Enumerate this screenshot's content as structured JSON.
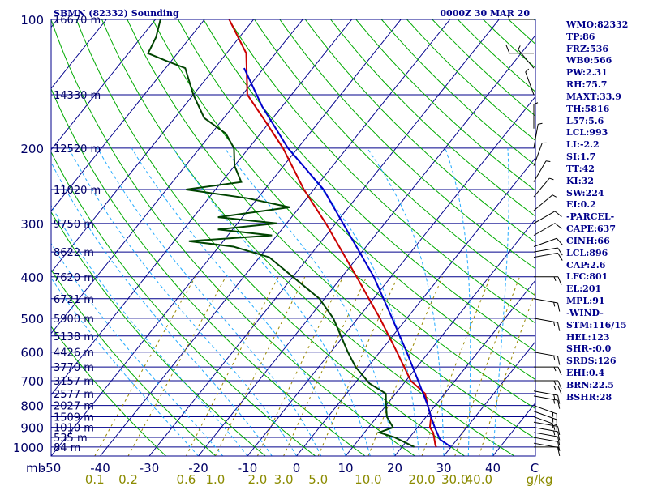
{
  "header": {
    "station": "SBMN (82332) Sounding",
    "valid_time": "0000Z 30 MAR 20"
  },
  "chart_data": {
    "type": "line",
    "title": "SBMN (82332) Sounding",
    "subtitle": "0000Z 30 MAR 20",
    "x_axis_unit_label": "mb",
    "mixing_ratio_unit_label": "g/kg",
    "pressure_levels": [
      100,
      200,
      300,
      400,
      500,
      600,
      700,
      800,
      900,
      1000
    ],
    "pressure_ticks": [
      "100",
      "200",
      "300",
      "400",
      "500",
      "600",
      "700",
      "800",
      "900",
      "1000"
    ],
    "temperature_ticks": [
      "-50",
      "-40",
      "-30",
      "-20",
      "-10",
      "0",
      "10",
      "20",
      "30",
      "40",
      "C"
    ],
    "temperature_values": [
      -50,
      -40,
      -30,
      -20,
      -10,
      0,
      10,
      20,
      30,
      40
    ],
    "mixing_ratio_ticks": [
      "0.1",
      "0.2",
      "0.6",
      "1.0",
      "2.0",
      "3.0",
      "5.0",
      "10.0",
      "20.0",
      "30.0",
      "40.0"
    ],
    "mixing_ratio_values": [
      0.1,
      0.2,
      0.6,
      1.0,
      2.0,
      3.0,
      5.0,
      10.0,
      20.0,
      30.0,
      40.0
    ],
    "height_labels": [
      {
        "p": 100,
        "label": "16670 m"
      },
      {
        "p": 150,
        "label": "14330 m"
      },
      {
        "p": 200,
        "label": "12520 m"
      },
      {
        "p": 250,
        "label": "11020 m"
      },
      {
        "p": 300,
        "label": "9750 m"
      },
      {
        "p": 350,
        "label": "8622 m"
      },
      {
        "p": 400,
        "label": "7620 m"
      },
      {
        "p": 450,
        "label": "6721 m"
      },
      {
        "p": 500,
        "label": "5900 m"
      },
      {
        "p": 550,
        "label": "5138 m"
      },
      {
        "p": 600,
        "label": "4426 m"
      },
      {
        "p": 650,
        "label": "3770 m"
      },
      {
        "p": 700,
        "label": "3157 m"
      },
      {
        "p": 750,
        "label": "2577 m"
      },
      {
        "p": 800,
        "label": "2027 m"
      },
      {
        "p": 850,
        "label": "1509 m"
      },
      {
        "p": 900,
        "label": "1010 m"
      },
      {
        "p": 950,
        "label": "535 m"
      },
      {
        "p": 1000,
        "label": "84 m"
      }
    ],
    "series": [
      {
        "name": "Temperature",
        "color": "#cc0000",
        "points": [
          {
            "p": 1000,
            "t": 27.0
          },
          {
            "p": 990,
            "t": 26.5
          },
          {
            "p": 950,
            "t": 25.0
          },
          {
            "p": 925,
            "t": 24.0
          },
          {
            "p": 900,
            "t": 22.5
          },
          {
            "p": 850,
            "t": 21.0
          },
          {
            "p": 800,
            "t": 18.5
          },
          {
            "p": 750,
            "t": 16.0
          },
          {
            "p": 700,
            "t": 11.0
          },
          {
            "p": 600,
            "t": 3.5
          },
          {
            "p": 500,
            "t": -5.5
          },
          {
            "p": 400,
            "t": -17.0
          },
          {
            "p": 300,
            "t": -32.0
          },
          {
            "p": 250,
            "t": -42.0
          },
          {
            "p": 200,
            "t": -53.0
          },
          {
            "p": 170,
            "t": -62.0
          },
          {
            "p": 150,
            "t": -69.0
          },
          {
            "p": 120,
            "t": -76.0
          },
          {
            "p": 100,
            "t": -85.0
          }
        ]
      },
      {
        "name": "Dewpoint",
        "color": "#004400",
        "points": [
          {
            "p": 1000,
            "t": 22.5
          },
          {
            "p": 950,
            "t": 17.0
          },
          {
            "p": 925,
            "t": 13.0
          },
          {
            "p": 900,
            "t": 15.0
          },
          {
            "p": 850,
            "t": 12.0
          },
          {
            "p": 800,
            "t": 10.0
          },
          {
            "p": 750,
            "t": 8.0
          },
          {
            "p": 710,
            "t": 3.0
          },
          {
            "p": 650,
            "t": -2.5
          },
          {
            "p": 600,
            "t": -6.5
          },
          {
            "p": 500,
            "t": -15.0
          },
          {
            "p": 450,
            "t": -21.0
          },
          {
            "p": 400,
            "t": -30.0
          },
          {
            "p": 360,
            "t": -38.0
          },
          {
            "p": 340,
            "t": -47.0
          },
          {
            "p": 330,
            "t": -57.0
          },
          {
            "p": 320,
            "t": -41.0
          },
          {
            "p": 310,
            "t": -53.0
          },
          {
            "p": 300,
            "t": -42.0
          },
          {
            "p": 290,
            "t": -55.0
          },
          {
            "p": 275,
            "t": -42.0
          },
          {
            "p": 262,
            "t": -52.0
          },
          {
            "p": 250,
            "t": -66.0
          },
          {
            "p": 240,
            "t": -56.0
          },
          {
            "p": 220,
            "t": -60.0
          },
          {
            "p": 200,
            "t": -63.0
          },
          {
            "p": 185,
            "t": -67.0
          },
          {
            "p": 170,
            "t": -74.0
          },
          {
            "p": 150,
            "t": -80.0
          },
          {
            "p": 130,
            "t": -86.0
          },
          {
            "p": 125,
            "t": -91.0
          },
          {
            "p": 120,
            "t": -96.0
          },
          {
            "p": 110,
            "t": -97.0
          },
          {
            "p": 100,
            "t": -99.0
          }
        ]
      },
      {
        "name": "Parcel",
        "color": "#0000cc",
        "points": [
          {
            "p": 1000,
            "t": 30.0
          },
          {
            "p": 960,
            "t": 26.5
          },
          {
            "p": 900,
            "t": 23.5
          },
          {
            "p": 850,
            "t": 21.0
          },
          {
            "p": 800,
            "t": 18.5
          },
          {
            "p": 700,
            "t": 12.5
          },
          {
            "p": 600,
            "t": 5.5
          },
          {
            "p": 500,
            "t": -3.0
          },
          {
            "p": 400,
            "t": -13.5
          },
          {
            "p": 300,
            "t": -28.5
          },
          {
            "p": 250,
            "t": -38.0
          },
          {
            "p": 200,
            "t": -52.0
          },
          {
            "p": 160,
            "t": -64.0
          },
          {
            "p": 130,
            "t": -74.0
          }
        ]
      }
    ],
    "winds": [
      {
        "p": 1000,
        "dir": 90,
        "spd": 5
      },
      {
        "p": 980,
        "dir": 100,
        "spd": 10
      },
      {
        "p": 950,
        "dir": 100,
        "spd": 10
      },
      {
        "p": 925,
        "dir": 100,
        "spd": 10
      },
      {
        "p": 900,
        "dir": 100,
        "spd": 15
      },
      {
        "p": 875,
        "dir": 100,
        "spd": 15
      },
      {
        "p": 850,
        "dir": 110,
        "spd": 15
      },
      {
        "p": 825,
        "dir": 110,
        "spd": 15
      },
      {
        "p": 800,
        "dir": 110,
        "spd": 15
      },
      {
        "p": 760,
        "dir": 100,
        "spd": 15
      },
      {
        "p": 740,
        "dir": 100,
        "spd": 15
      },
      {
        "p": 720,
        "dir": 90,
        "spd": 15
      },
      {
        "p": 700,
        "dir": 90,
        "spd": 15
      },
      {
        "p": 650,
        "dir": 90,
        "spd": 15
      },
      {
        "p": 600,
        "dir": 100,
        "spd": 15
      },
      {
        "p": 500,
        "dir": 100,
        "spd": 15
      },
      {
        "p": 450,
        "dir": 100,
        "spd": 15
      },
      {
        "p": 400,
        "dir": 90,
        "spd": 15
      },
      {
        "p": 360,
        "dir": 80,
        "spd": 10
      },
      {
        "p": 350,
        "dir": 80,
        "spd": 10
      },
      {
        "p": 340,
        "dir": 70,
        "spd": 10
      },
      {
        "p": 320,
        "dir": 60,
        "spd": 10
      },
      {
        "p": 300,
        "dir": 60,
        "spd": 10
      },
      {
        "p": 280,
        "dir": 50,
        "spd": 5
      },
      {
        "p": 260,
        "dir": 40,
        "spd": 5
      },
      {
        "p": 240,
        "dir": 30,
        "spd": 5
      },
      {
        "p": 220,
        "dir": 20,
        "spd": 5
      },
      {
        "p": 200,
        "dir": 10,
        "spd": 5
      },
      {
        "p": 180,
        "dir": 360,
        "spd": 5
      },
      {
        "p": 150,
        "dir": 340,
        "spd": 5
      },
      {
        "p": 130,
        "dir": 320,
        "spd": 5
      },
      {
        "p": 120,
        "dir": 270,
        "spd": 10
      },
      {
        "p": 100,
        "dir": 270,
        "spd": 5
      }
    ],
    "grid": true,
    "legend": "none"
  },
  "indices": [
    "WMO:82332",
    "TP:86",
    "FRZ:536",
    "WB0:566",
    "PW:2.31",
    "RH:75.7",
    "MAXT:33.9",
    "TH:5816",
    "L57:5.6",
    "LCL:993",
    "LI:-2.2",
    "SI:1.7",
    "TT:42",
    "KI:32",
    "SW:224",
    "EI:0.2",
    "-PARCEL-",
    "CAPE:637",
    "CINH:66",
    "LCL:896",
    "CAP:2.6",
    "LFC:801",
    "EL:201",
    "MPL:91",
    "-WIND-",
    "STM:116/15",
    "HEL:123",
    "SHR-:0.0",
    "SRDS:126",
    "EHI:0.4",
    "BRN:22.5",
    "BSHR:28"
  ],
  "colors": {
    "isobar": "#00008b",
    "isotherm": "#00008b",
    "dry_adiabat": "#00aa00",
    "moist_adiabat": "#22aaff",
    "mixing_ratio": "#998800",
    "text": "#00008b",
    "wind": "#000000"
  }
}
